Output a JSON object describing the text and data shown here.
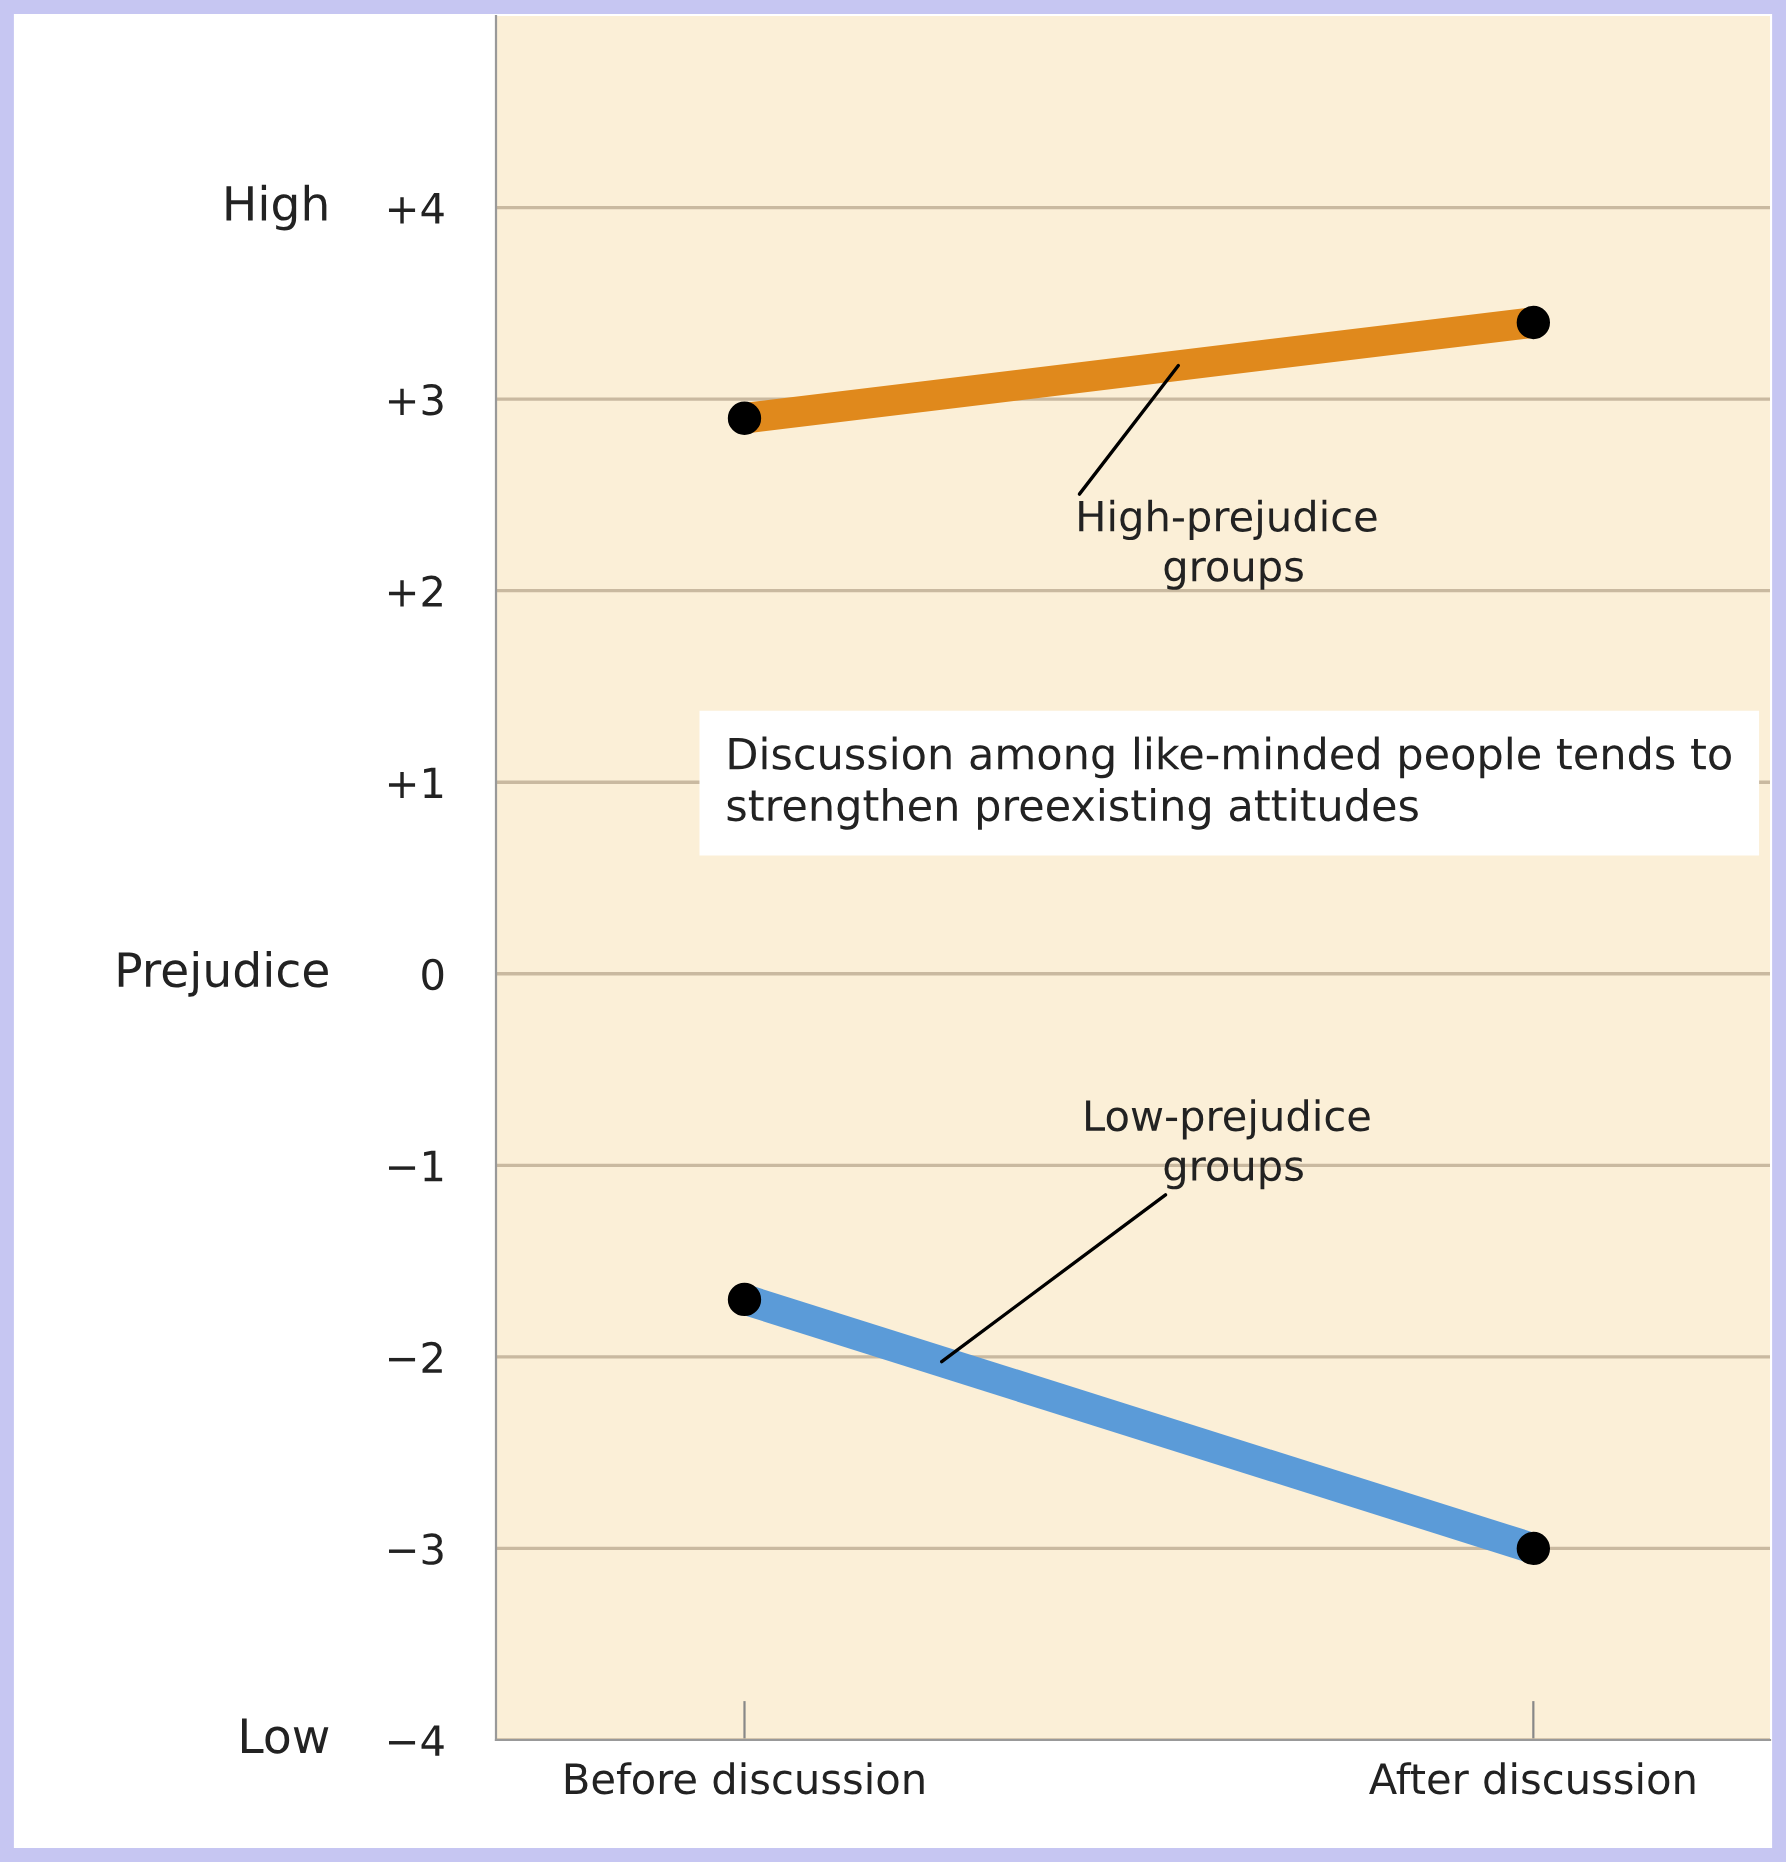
{
  "chart_data": {
    "type": "line",
    "ylabel": "Prejudice",
    "categories": [
      "Before discussion",
      "After discussion"
    ],
    "series": [
      {
        "name": "High-prejudice groups",
        "color": "#e0891c",
        "values": [
          2.9,
          3.4
        ]
      },
      {
        "name": "Low-prejudice groups",
        "color": "#5b9bd8",
        "values": [
          -1.7,
          -3.0
        ]
      }
    ],
    "ylim": [
      -4,
      5
    ],
    "yticks": [
      {
        "value": -4,
        "label": "−4"
      },
      {
        "value": -3,
        "label": "−3"
      },
      {
        "value": -2,
        "label": "−2"
      },
      {
        "value": -1,
        "label": "−1"
      },
      0,
      {
        "value": 1,
        "label": "+1"
      },
      {
        "value": 2,
        "label": "+2"
      },
      {
        "value": 3,
        "label": "+3"
      },
      {
        "value": 4,
        "label": "+4"
      }
    ],
    "annotations": [
      "Low",
      "High",
      "Discussion among like-minded people tends to strengthen preexisting attitudes"
    ],
    "grid": "y",
    "marker": "circle",
    "line_style": "solid"
  }
}
